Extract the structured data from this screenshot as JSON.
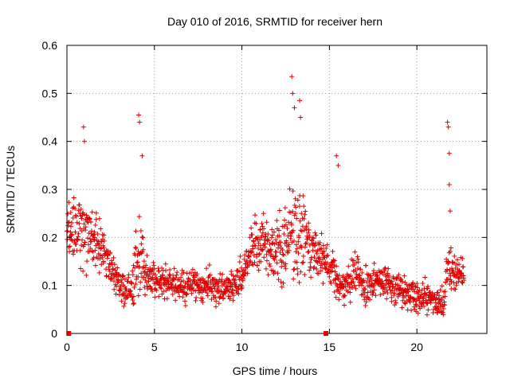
{
  "chart_data": {
    "type": "scatter",
    "title": "Day 010 of 2016, SRMTID for receiver hern",
    "xlabel": "GPS time / hours",
    "ylabel": "SRMTID / TECUs",
    "xlim": [
      0,
      24
    ],
    "ylim": [
      0,
      0.6
    ],
    "xticks": [
      "0",
      "5",
      "10",
      "15",
      "20"
    ],
    "yticks": [
      "0",
      "0.1",
      "0.2",
      "0.3",
      "0.4",
      "0.5",
      "0.6"
    ],
    "grid": true,
    "marker": "+",
    "colors": {
      "series": "#e00000",
      "axis": "#000000",
      "grid": "#a0a0a0"
    },
    "zero_markers_x": [
      0.1,
      14.8
    ],
    "envelope": {
      "x": [
        0.0,
        0.5,
        1.0,
        1.5,
        2.0,
        2.5,
        3.0,
        3.5,
        4.0,
        4.2,
        4.5,
        5.0,
        6.0,
        7.0,
        8.0,
        9.0,
        10.0,
        10.5,
        11.0,
        11.5,
        12.0,
        12.5,
        12.7,
        13.0,
        13.5,
        14.0,
        14.5,
        15.0,
        15.5,
        16.0,
        16.5,
        17.0,
        18.0,
        19.0,
        20.0,
        21.0,
        21.5,
        21.8,
        22.2,
        22.7
      ],
      "center": [
        0.2,
        0.22,
        0.2,
        0.19,
        0.18,
        0.14,
        0.1,
        0.09,
        0.13,
        0.17,
        0.12,
        0.11,
        0.1,
        0.1,
        0.1,
        0.09,
        0.12,
        0.18,
        0.2,
        0.18,
        0.17,
        0.19,
        0.2,
        0.21,
        0.19,
        0.17,
        0.16,
        0.14,
        0.11,
        0.1,
        0.13,
        0.1,
        0.11,
        0.09,
        0.08,
        0.07,
        0.06,
        0.15,
        0.12,
        0.13
      ],
      "spread": [
        0.05,
        0.07,
        0.08,
        0.05,
        0.04,
        0.04,
        0.03,
        0.03,
        0.07,
        0.08,
        0.04,
        0.03,
        0.03,
        0.03,
        0.03,
        0.03,
        0.04,
        0.06,
        0.05,
        0.05,
        0.06,
        0.08,
        0.08,
        0.08,
        0.07,
        0.05,
        0.04,
        0.04,
        0.04,
        0.03,
        0.05,
        0.03,
        0.03,
        0.03,
        0.03,
        0.03,
        0.03,
        0.05,
        0.03,
        0.03
      ]
    },
    "peaks": [
      {
        "x": 0.95,
        "y": 0.43
      },
      {
        "x": 1.0,
        "y": 0.4
      },
      {
        "x": 4.1,
        "y": 0.455
      },
      {
        "x": 4.15,
        "y": 0.44
      },
      {
        "x": 4.3,
        "y": 0.37
      },
      {
        "x": 12.85,
        "y": 0.535
      },
      {
        "x": 12.9,
        "y": 0.5
      },
      {
        "x": 13.3,
        "y": 0.485
      },
      {
        "x": 13.0,
        "y": 0.47
      },
      {
        "x": 13.35,
        "y": 0.45
      },
      {
        "x": 15.4,
        "y": 0.37
      },
      {
        "x": 15.5,
        "y": 0.35
      },
      {
        "x": 21.75,
        "y": 0.44
      },
      {
        "x": 21.8,
        "y": 0.43
      },
      {
        "x": 21.85,
        "y": 0.375
      },
      {
        "x": 21.85,
        "y": 0.31
      },
      {
        "x": 21.9,
        "y": 0.255
      }
    ],
    "num_points": 1500
  }
}
